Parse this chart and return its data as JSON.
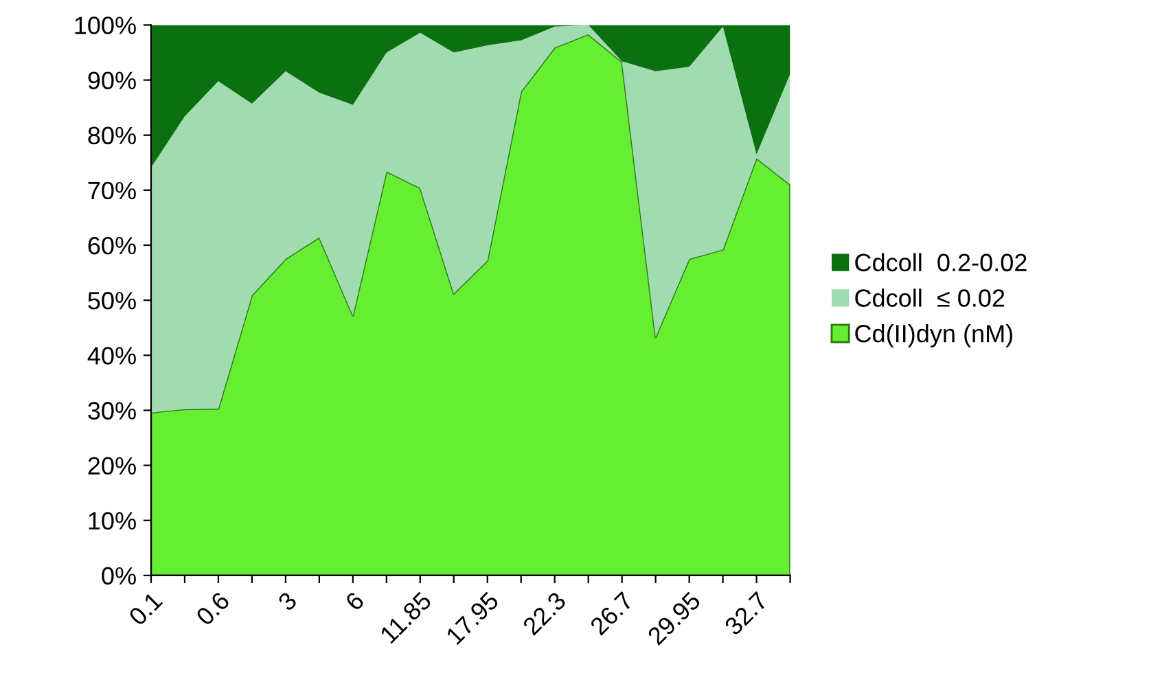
{
  "chart_data": {
    "type": "area",
    "stacked": true,
    "categories": [
      "0.1",
      null,
      "0.6",
      null,
      "3",
      null,
      "6",
      null,
      "11.85",
      null,
      "17.95",
      null,
      "22.3",
      null,
      "26.7",
      null,
      "29.95",
      null,
      "32.7",
      null
    ],
    "series": [
      {
        "name": "Cd(II)dyn (nM)",
        "color": "#66ee33",
        "values": [
          29.6,
          30.2,
          30.3,
          50.9,
          57.5,
          61.4,
          47.2,
          73.4,
          70.4,
          51.2,
          57.2,
          87.9,
          95.9,
          98.3,
          93.3,
          43.3,
          57.5,
          59.2,
          75.8,
          71.0
        ]
      },
      {
        "name": "Cdcoll  ≤ 0.02",
        "color": "#a0dcb0",
        "values": [
          44.5,
          53.2,
          59.5,
          34.8,
          34.1,
          26.3,
          38.3,
          21.6,
          28.2,
          43.8,
          39.1,
          9.3,
          3.8,
          1.7,
          0.1,
          48.3,
          34.9,
          40.5,
          0.7,
          20.1
        ]
      },
      {
        "name": "Cdcoll  0.2-0.02",
        "color": "#0a7010",
        "values": [
          25.9,
          16.6,
          10.2,
          14.3,
          8.4,
          12.3,
          14.5,
          5.0,
          1.4,
          5.0,
          3.7,
          2.8,
          0.3,
          0.0,
          6.6,
          8.4,
          7.6,
          0.3,
          23.5,
          8.9
        ]
      }
    ],
    "ylim": [
      0,
      100
    ],
    "yticks": [
      {
        "value": 0,
        "label": "0%"
      },
      {
        "value": 10,
        "label": "10%"
      },
      {
        "value": 20,
        "label": "20%"
      },
      {
        "value": 30,
        "label": "30%"
      },
      {
        "value": 40,
        "label": "40%"
      },
      {
        "value": 50,
        "label": "50%"
      },
      {
        "value": 60,
        "label": "60%"
      },
      {
        "value": 70,
        "label": "70%"
      },
      {
        "value": 80,
        "label": "80%"
      },
      {
        "value": 90,
        "label": "90%"
      },
      {
        "value": 100,
        "label": "100%"
      }
    ],
    "legend": "right"
  }
}
